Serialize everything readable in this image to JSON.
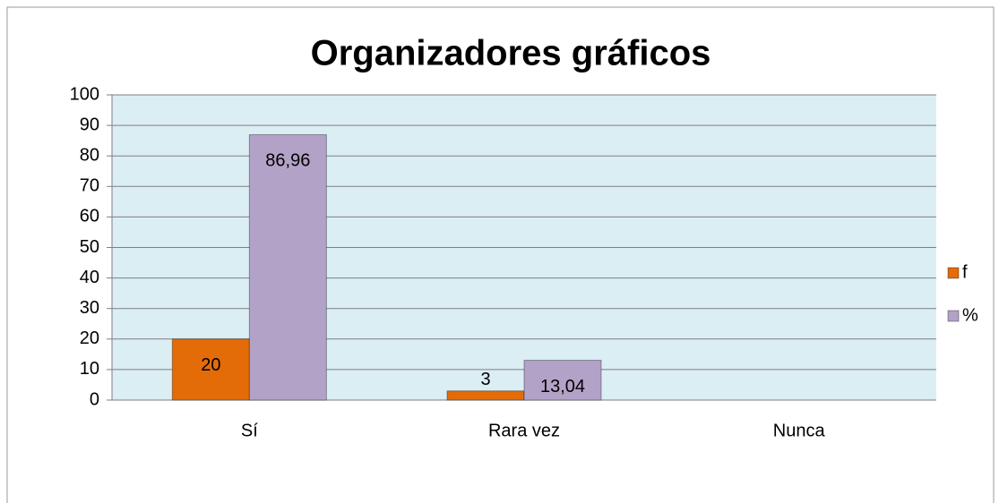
{
  "chart_data": {
    "type": "bar",
    "title": "Organizadores gráficos",
    "categories": [
      "Sí",
      "Rara vez",
      "Nunca"
    ],
    "series": [
      {
        "name": "f",
        "color": "#e36c09",
        "values": [
          20,
          3,
          null
        ]
      },
      {
        "name": "%",
        "color": "#b3a2c7",
        "values": [
          86.96,
          13.04,
          null
        ],
        "value_labels": [
          "86,96",
          "13,04",
          null
        ]
      }
    ],
    "ylim": [
      0,
      100
    ],
    "yticks": [
      0,
      10,
      20,
      30,
      40,
      50,
      60,
      70,
      80,
      90,
      100
    ],
    "grid": true,
    "legend": "right"
  }
}
